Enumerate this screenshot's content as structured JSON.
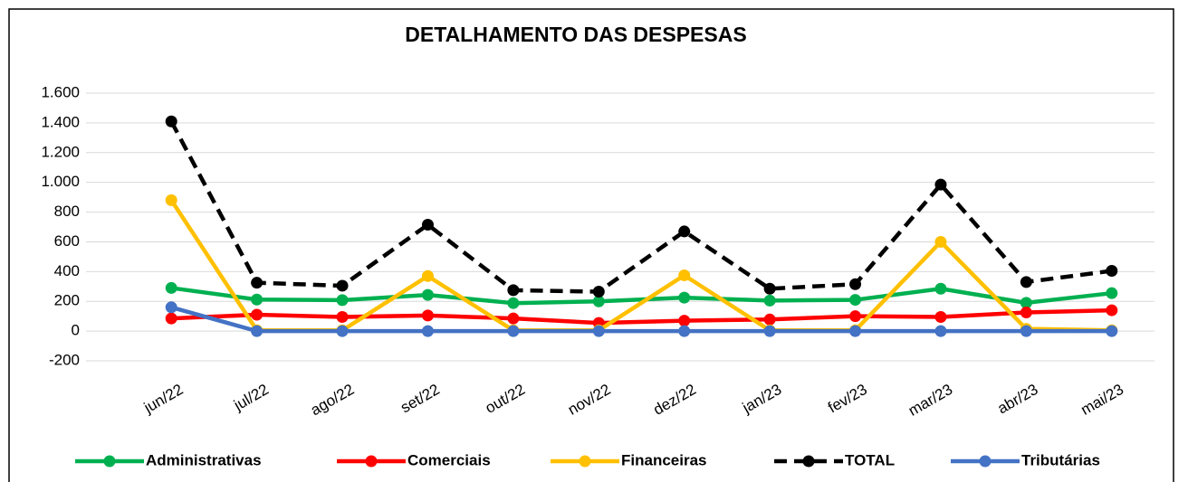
{
  "chart_data": {
    "type": "line",
    "title": "DETALHAMENTO DAS DESPESAS",
    "categories": [
      "jun/22",
      "jul/22",
      "ago/22",
      "set/22",
      "out/22",
      "nov/22",
      "dez/22",
      "jan/23",
      "fev/23",
      "mar/23",
      "abr/23",
      "mai/23"
    ],
    "series": [
      {
        "name": "Administrativas",
        "color": "#00b050",
        "values": [
          290,
          212,
          208,
          243,
          188,
          200,
          225,
          205,
          210,
          285,
          190,
          255
        ]
      },
      {
        "name": "Comerciais",
        "color": "#ff0000",
        "values": [
          85,
          110,
          95,
          105,
          85,
          55,
          70,
          78,
          100,
          95,
          125,
          140
        ]
      },
      {
        "name": "Financeiras",
        "color": "#ffc000",
        "values": [
          880,
          5,
          5,
          370,
          5,
          5,
          375,
          5,
          5,
          600,
          15,
          5
        ]
      },
      {
        "name": "TOTAL",
        "color": "#000000",
        "dashed": true,
        "values": [
          1410,
          325,
          305,
          715,
          275,
          265,
          670,
          285,
          315,
          985,
          330,
          405
        ]
      },
      {
        "name": "Tributárias",
        "color": "#4472c4",
        "values": [
          160,
          0,
          0,
          0,
          0,
          0,
          0,
          0,
          0,
          0,
          0,
          0
        ]
      }
    ],
    "ylim": [
      -200,
      1600
    ],
    "yticks": [
      -200,
      0,
      200,
      400,
      600,
      800,
      {
        "value": 1000,
        "label": "1.000"
      },
      {
        "value": 1200,
        "label": "1.200"
      },
      {
        "value": 1400,
        "label": "1.400"
      },
      {
        "value": 1600,
        "label": "1.600"
      }
    ],
    "grid": true,
    "negative_tick_color": "#ff0000",
    "legend": "bottom"
  }
}
